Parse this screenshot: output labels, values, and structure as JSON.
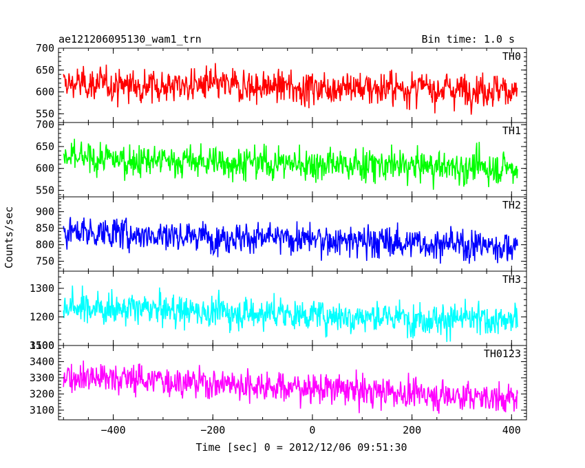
{
  "chart_data": {
    "type": "line",
    "title": "ae121206095130_wam1_trn",
    "subtitle": "Bin time: 1.0 s",
    "ylabel": "Counts/sec",
    "xlabel": "Time [sec] 0 = 2012/12/06 09:51:30",
    "xlim": [
      -510,
      430
    ],
    "x_range": [
      -500,
      412
    ],
    "x_ticks": [
      "−400",
      "−200",
      "0",
      "200",
      "400"
    ],
    "x_tick_values": [
      -400,
      -200,
      0,
      200,
      400
    ],
    "grid": false,
    "panels": [
      {
        "name": "TH0",
        "color": "#ff0000",
        "ylim": [
          530,
          700
        ],
        "y_ticks": [
          "550",
          "600",
          "650",
          "700"
        ],
        "y_tick_values": [
          550,
          600,
          650,
          700
        ],
        "mean_start": 618,
        "mean_end": 605,
        "noise": 28,
        "min": 540,
        "max": 700
      },
      {
        "name": "TH1",
        "color": "#00ff00",
        "ylim": [
          535,
          705
        ],
        "y_ticks": [
          "550",
          "600",
          "650",
          "700"
        ],
        "y_tick_values": [
          550,
          600,
          650,
          700
        ],
        "mean_start": 622,
        "mean_end": 600,
        "noise": 28,
        "min": 540,
        "max": 700
      },
      {
        "name": "TH2",
        "color": "#0000ff",
        "ylim": [
          720,
          945
        ],
        "y_ticks": [
          "750",
          "800",
          "850",
          "900"
        ],
        "y_tick_values": [
          750,
          800,
          850,
          900
        ],
        "mean_start": 840,
        "mean_end": 795,
        "noise": 35,
        "min": 730,
        "max": 940
      },
      {
        "name": "TH3",
        "color": "#00ffff",
        "ylim": [
          1100,
          1360
        ],
        "y_ticks": [
          "1100",
          "1200",
          "1300"
        ],
        "y_tick_values": [
          1100,
          1200,
          1300
        ],
        "mean_start": 1235,
        "mean_end": 1185,
        "noise": 42,
        "min": 1105,
        "max": 1355
      },
      {
        "name": "TH0123",
        "color": "#ff00ff",
        "ylim": [
          3040,
          3500
        ],
        "y_ticks": [
          "3100",
          "3200",
          "3300",
          "3400",
          "3500"
        ],
        "y_tick_values": [
          3100,
          3200,
          3300,
          3400,
          3500
        ],
        "mean_start": 3315,
        "mean_end": 3170,
        "noise": 70,
        "min": 3060,
        "max": 3500
      }
    ]
  }
}
